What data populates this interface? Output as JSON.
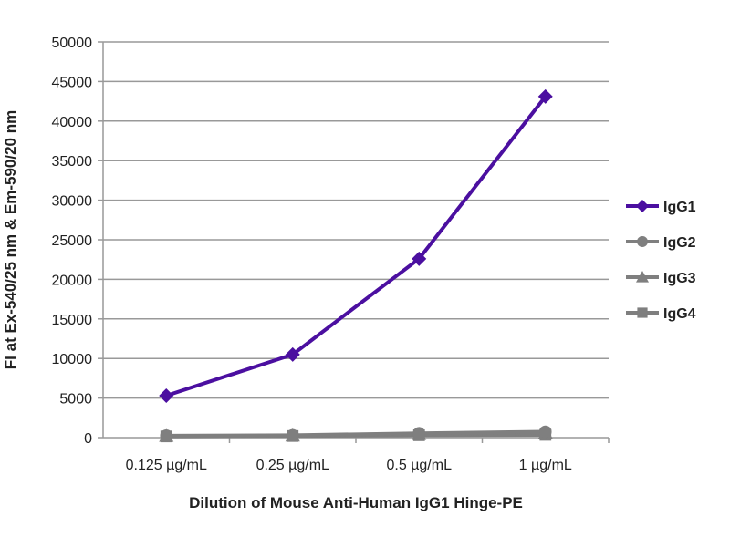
{
  "chart_data": {
    "type": "line",
    "title": "",
    "xlabel": "Dilution of Mouse Anti-Human IgG1 Hinge-PE",
    "ylabel": "FI at Ex-540/25 nm & Em-590/20 nm",
    "categories": [
      "0.125 µg/mL",
      "0.25 µg/mL",
      "0.5 µg/mL",
      "1 µg/mL"
    ],
    "ylim": [
      0,
      50000
    ],
    "yticks": [
      0,
      5000,
      10000,
      15000,
      20000,
      25000,
      30000,
      35000,
      40000,
      45000,
      50000
    ],
    "grid": true,
    "legend": "right",
    "series": [
      {
        "name": "IgG1",
        "marker": "diamond",
        "color": "#4b0fa0",
        "values": [
          5300,
          10500,
          22600,
          43100
        ]
      },
      {
        "name": "IgG2",
        "marker": "circle",
        "color": "#7f7f7f",
        "values": [
          250,
          300,
          550,
          750
        ]
      },
      {
        "name": "IgG3",
        "marker": "triangle",
        "color": "#7f7f7f",
        "values": [
          200,
          250,
          450,
          600
        ]
      },
      {
        "name": "IgG4",
        "marker": "square",
        "color": "#7f7f7f",
        "values": [
          150,
          200,
          300,
          350
        ]
      }
    ]
  }
}
